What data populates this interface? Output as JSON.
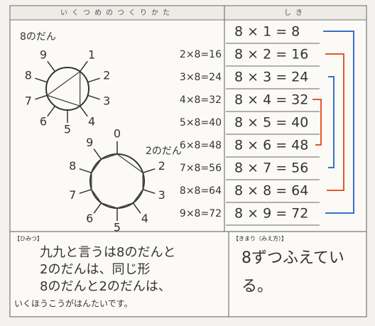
{
  "header": {
    "left": "いくつめのつくりかた",
    "right": "しき"
  },
  "diagram1": {
    "title": "8のだん",
    "labels": [
      "1",
      "2",
      "3",
      "4",
      "5",
      "6",
      "7",
      "8",
      "9"
    ]
  },
  "diagram2": {
    "title": "2のだん",
    "labels": [
      "0",
      "2",
      "3",
      "4",
      "5",
      "6",
      "7",
      "8",
      "9"
    ]
  },
  "equations": [
    "8 × 1 = 8",
    "8 × 2 = 16",
    "8 × 3 = 24",
    "8 × 4 = 32",
    "8 × 5 = 40",
    "8 × 6 = 48",
    "8 × 7 = 56",
    "8 × 8 = 64",
    "8 × 9 = 72"
  ],
  "notes": [
    "2×8=16",
    "3×8=24",
    "4×8=32",
    "5×8=40",
    "6×8=48",
    "7×8=56",
    "8×8=64",
    "9×8=72"
  ],
  "secret": {
    "title": "【ひみつ】",
    "lines": [
      "九九と言うは8のだんと",
      "2のだんは、同じ形",
      "8のだんと2のだんは、",
      "いくほうこうがはんたいです。"
    ]
  },
  "rule": {
    "title": "【きまり（みえ方）】",
    "lines": [
      "8ずつふえてい",
      "る。"
    ]
  }
}
